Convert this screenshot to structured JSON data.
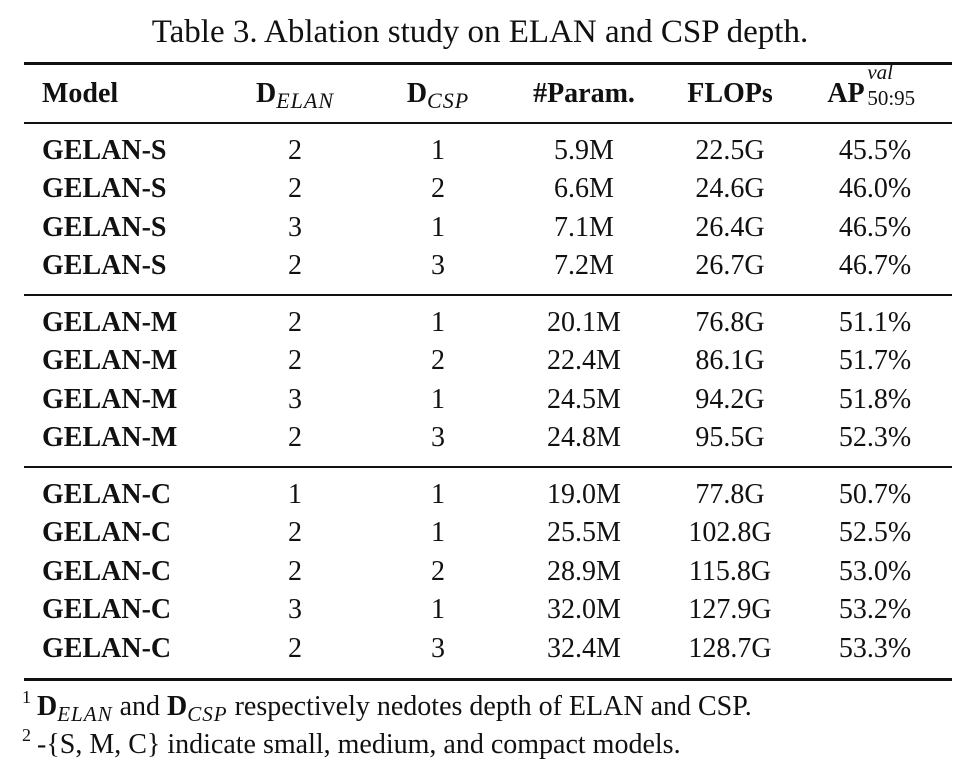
{
  "caption": "Table 3. Ablation study on ELAN and CSP depth.",
  "header": {
    "model": "Model",
    "d_elan_main": "D",
    "d_elan_sub": "ELAN",
    "d_csp_main": "D",
    "d_csp_sub": "CSP",
    "params": "#Param.",
    "flops": "FLOPs",
    "ap_main": "AP",
    "ap_sup": "val",
    "ap_sub": "50:95"
  },
  "rows": [
    {
      "model": "GELAN-S",
      "d_elan": "2",
      "d_csp": "1",
      "params": "5.9M",
      "flops": "22.5G",
      "ap": "45.5%"
    },
    {
      "model": "GELAN-S",
      "d_elan": "2",
      "d_csp": "2",
      "params": "6.6M",
      "flops": "24.6G",
      "ap": "46.0%"
    },
    {
      "model": "GELAN-S",
      "d_elan": "3",
      "d_csp": "1",
      "params": "7.1M",
      "flops": "26.4G",
      "ap": "46.5%"
    },
    {
      "model": "GELAN-S",
      "d_elan": "2",
      "d_csp": "3",
      "params": "7.2M",
      "flops": "26.7G",
      "ap": "46.7%"
    },
    {
      "model": "GELAN-M",
      "d_elan": "2",
      "d_csp": "1",
      "params": "20.1M",
      "flops": "76.8G",
      "ap": "51.1%"
    },
    {
      "model": "GELAN-M",
      "d_elan": "2",
      "d_csp": "2",
      "params": "22.4M",
      "flops": "86.1G",
      "ap": "51.7%"
    },
    {
      "model": "GELAN-M",
      "d_elan": "3",
      "d_csp": "1",
      "params": "24.5M",
      "flops": "94.2G",
      "ap": "51.8%"
    },
    {
      "model": "GELAN-M",
      "d_elan": "2",
      "d_csp": "3",
      "params": "24.8M",
      "flops": "95.5G",
      "ap": "52.3%"
    },
    {
      "model": "GELAN-C",
      "d_elan": "1",
      "d_csp": "1",
      "params": "19.0M",
      "flops": "77.8G",
      "ap": "50.7%"
    },
    {
      "model": "GELAN-C",
      "d_elan": "2",
      "d_csp": "1",
      "params": "25.5M",
      "flops": "102.8G",
      "ap": "52.5%"
    },
    {
      "model": "GELAN-C",
      "d_elan": "2",
      "d_csp": "2",
      "params": "28.9M",
      "flops": "115.8G",
      "ap": "53.0%"
    },
    {
      "model": "GELAN-C",
      "d_elan": "3",
      "d_csp": "1",
      "params": "32.0M",
      "flops": "127.9G",
      "ap": "53.2%"
    },
    {
      "model": "GELAN-C",
      "d_elan": "2",
      "d_csp": "3",
      "params": "32.4M",
      "flops": "128.7G",
      "ap": "53.3%"
    }
  ],
  "footnotes": {
    "fn1": {
      "mark": "1",
      "d1_main": "D",
      "d1_sub": "ELAN",
      "and": "and",
      "d2_main": "D",
      "d2_sub": "CSP",
      "text": "respectively nedotes depth of ELAN and CSP."
    },
    "fn2": {
      "mark": "2",
      "prefix": "-{",
      "letters": "S, M, C",
      "text": "} indicate small, medium, and compact models."
    }
  }
}
